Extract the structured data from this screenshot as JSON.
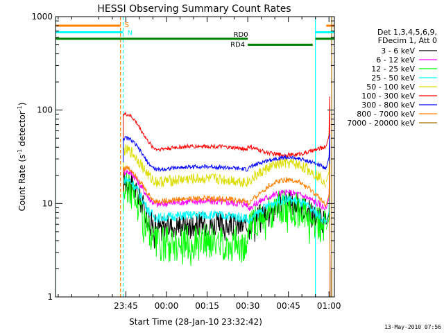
{
  "chart_data": {
    "type": "line",
    "title": "HESSI Observing Summary Count Rates",
    "xlabel": "Start Time (28-Jan-10 23:32:42)",
    "ylabel_main": "Count Rate (s",
    "ylabel_sup1": "-1",
    "ylabel_mid": " detector",
    "ylabel_sup2": "-1",
    "ylabel_end": ")",
    "y_scale": "log",
    "ylim": [
      1,
      1000
    ],
    "xlim_minutes": [
      -26,
      77
    ],
    "x_ticks": [
      {
        "m": 0,
        "label": "23:45"
      },
      {
        "m": 15,
        "label": "00:00"
      },
      {
        "m": 30,
        "label": "00:15"
      },
      {
        "m": 45,
        "label": "00:30"
      },
      {
        "m": 60,
        "label": "00:45"
      },
      {
        "m": 75,
        "label": "01:00"
      }
    ],
    "y_ticks": [
      {
        "v": 1,
        "label": "1"
      },
      {
        "v": 10,
        "label": "10"
      },
      {
        "v": 100,
        "label": "100"
      },
      {
        "v": 1000,
        "label": "1000"
      }
    ],
    "legend_header": [
      "Det 1,3,4,5,6,9,",
      "FDecim 1, Att 0"
    ],
    "series": [
      {
        "name": "3 - 6 keV",
        "color": "#000000",
        "start": 17,
        "plateau": 5.6,
        "mid": 10,
        "late": 6.0,
        "jit": 0.3,
        "dip": 9
      },
      {
        "name": "6 - 12 keV",
        "color": "#ff00ff",
        "start": 22,
        "plateau": 9.8,
        "mid": 13,
        "late": 8.8,
        "jit": 0.09,
        "dip": 0
      },
      {
        "name": "12 - 25 keV",
        "color": "#00ff00",
        "start": 15,
        "plateau": 3.6,
        "mid": 9.0,
        "late": 5.3,
        "jit": 0.45,
        "dip": 7
      },
      {
        "name": "25 - 50 keV",
        "color": "#00ffff",
        "start": 18,
        "plateau": 7.0,
        "mid": 11,
        "late": 6.3,
        "jit": 0.12,
        "dip": 0
      },
      {
        "name": "50 - 100 keV",
        "color": "#dddd00",
        "start": 37,
        "plateau": 17,
        "mid": 27,
        "late": 17,
        "jit": 0.14,
        "dip": 0
      },
      {
        "name": "100 - 300 keV",
        "color": "#ff0000",
        "start": 90,
        "plateau": 38,
        "mid": 33,
        "late": 41,
        "jit": 0.05,
        "dip": 0
      },
      {
        "name": "300 - 800 keV",
        "color": "#0000ff",
        "start": 50,
        "plateau": 23,
        "mid": 31,
        "late": 24,
        "jit": 0.05,
        "dip": 0
      },
      {
        "name": "800 - 7000 keV",
        "color": "#ff8000",
        "start": 24,
        "plateau": 10.5,
        "mid": 18,
        "late": 9.6,
        "jit": 0.07,
        "dip": 0
      },
      {
        "name": "7000 - 20000 keV",
        "color": "#a07000",
        "start": 0,
        "plateau": 0,
        "mid": 0,
        "late": 0,
        "jit": 0,
        "dip": 0
      }
    ],
    "segment_minutes": {
      "start": -1,
      "break": 45,
      "end": 74,
      "flare_start": 75,
      "flare_end": 76
    },
    "flags": [
      {
        "label": "S",
        "color": "#ff8000",
        "level": 800,
        "from": -26,
        "to": -2,
        "from2": 74,
        "to2": 77
      },
      {
        "label": "N",
        "color": "#00ffff",
        "level": 680,
        "from": -26,
        "to": -1,
        "from2": 70,
        "to2": 77
      },
      {
        "label": "RD0",
        "color": "#008000",
        "level": 580,
        "from": -26,
        "to": 45,
        "from2": 70,
        "to2": 77
      },
      {
        "label": "RD4",
        "color": "#008000",
        "level": 500,
        "from": 45,
        "to": 69
      }
    ],
    "vlines": [
      {
        "m": -26,
        "color": "#00ffff",
        "dash": "none"
      },
      {
        "m": -2,
        "color": "#ff8000",
        "dash": "5,3"
      },
      {
        "m": -1,
        "color": "#00ffff",
        "dash": "5,3"
      },
      {
        "m": 70,
        "color": "#00ffff",
        "dash": "none"
      },
      {
        "m": 76,
        "color": "#a07000",
        "dash": "none"
      },
      {
        "m": 77,
        "color": "#ff8000",
        "dash": "5,3"
      }
    ]
  },
  "footer_stamp": "13-May-2010 07:56"
}
